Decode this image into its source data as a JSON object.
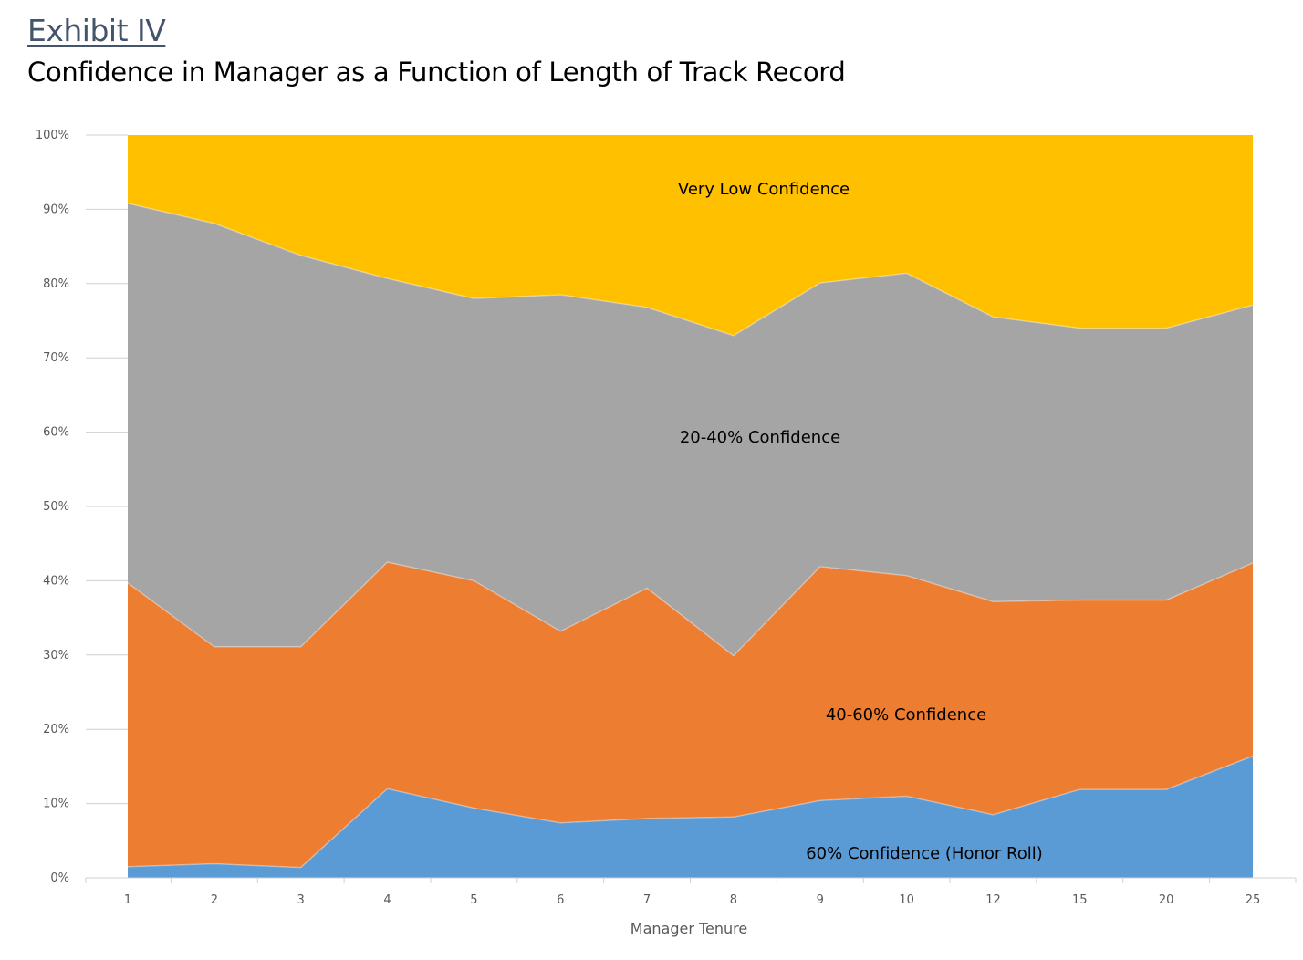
{
  "header": {
    "exhibit": "Exhibit IV",
    "title": "Confidence in Manager as a Function of Length of Track Record"
  },
  "chart_data": {
    "type": "area",
    "stacked": true,
    "title": "Confidence in Manager as a Function of Length of Track Record",
    "xlabel": "Manager Tenure",
    "ylabel": "",
    "categories": [
      "1",
      "2",
      "3",
      "4",
      "5",
      "6",
      "7",
      "8",
      "9",
      "10",
      "12",
      "15",
      "20",
      "25"
    ],
    "yticks": [
      "0%",
      "10%",
      "20%",
      "30%",
      "40%",
      "50%",
      "60%",
      "70%",
      "80%",
      "90%",
      "100%"
    ],
    "ylim": [
      0,
      100
    ],
    "grid": false,
    "series": [
      {
        "name": "60% Confidence (Honor Roll)",
        "color": "#5B9BD5",
        "values": [
          1.5,
          1.9,
          1.4,
          12.0,
          9.4,
          7.4,
          8.0,
          8.2,
          10.4,
          11.0,
          8.5,
          11.9,
          11.9,
          16.4
        ]
      },
      {
        "name": "40-60% Confidence",
        "color": "#ED7D31",
        "values": [
          38.2,
          29.2,
          29.7,
          30.5,
          30.6,
          25.8,
          31.0,
          21.7,
          31.5,
          29.7,
          28.7,
          25.5,
          25.5,
          26.0
        ]
      },
      {
        "name": "20-40% Confidence",
        "color": "#A5A5A5",
        "values": [
          51.1,
          57.0,
          52.7,
          38.2,
          38.0,
          45.3,
          37.8,
          43.1,
          38.2,
          40.7,
          38.3,
          36.6,
          36.6,
          34.7
        ]
      },
      {
        "name": "Very Low Confidence",
        "color": "#FFC000",
        "values": [
          9.2,
          11.9,
          16.2,
          19.3,
          22.0,
          21.5,
          23.2,
          27.0,
          19.9,
          18.6,
          24.5,
          26.0,
          26.0,
          22.9
        ]
      }
    ]
  }
}
